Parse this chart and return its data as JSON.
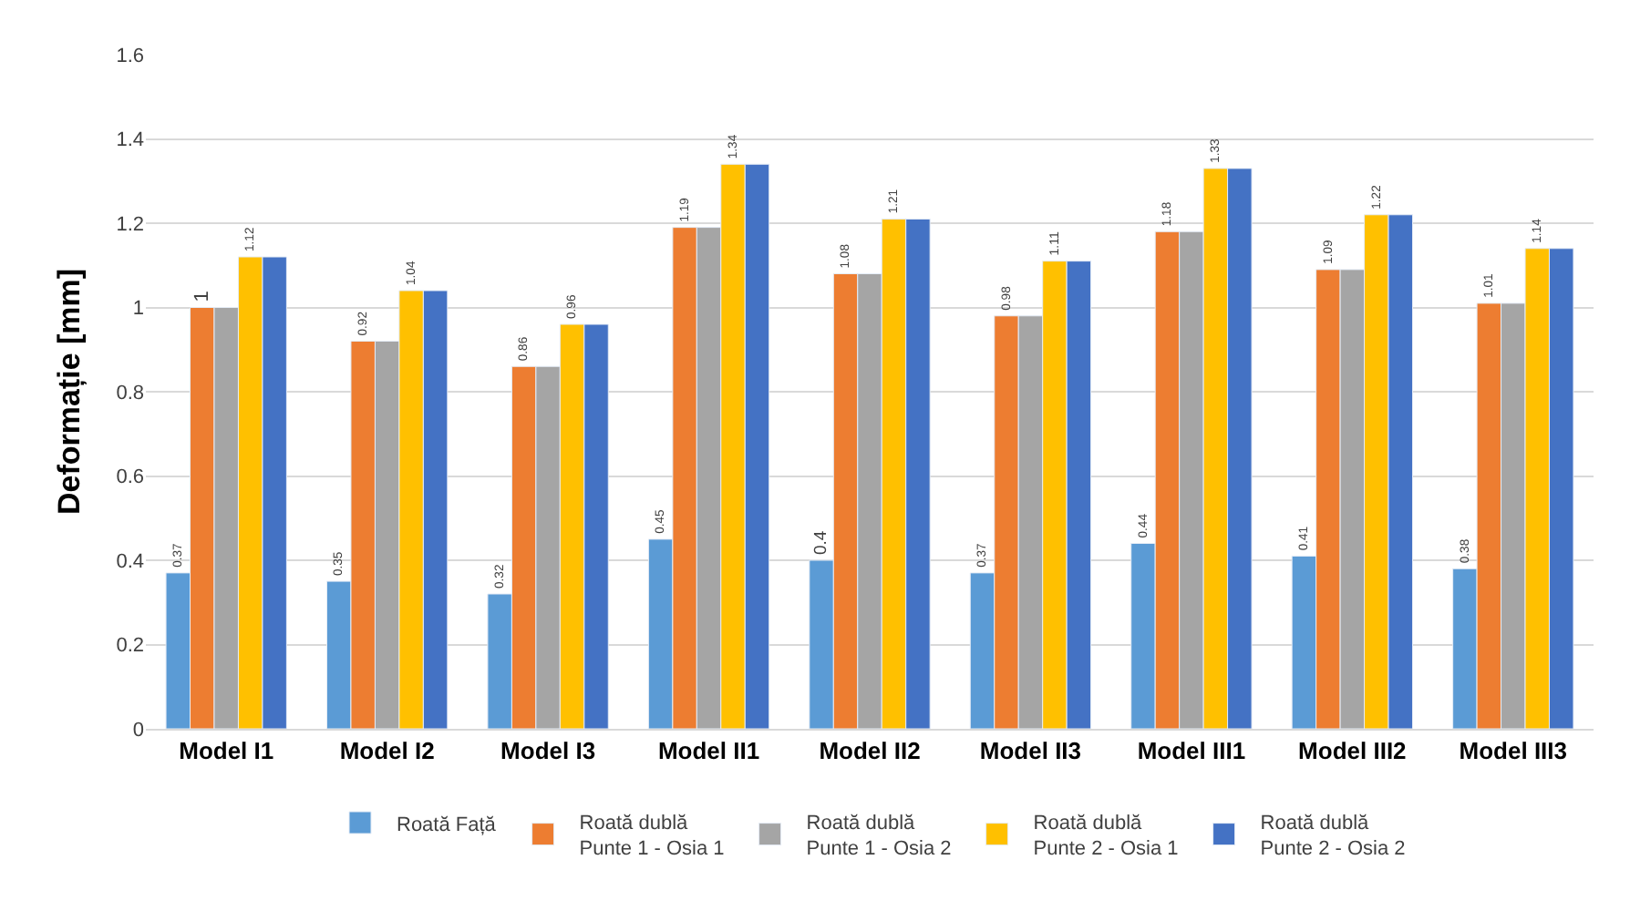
{
  "chart_data": {
    "type": "bar",
    "ylabel": "Deformație [mm]",
    "categories": [
      "Model I1",
      "Model I2",
      "Model I3",
      "Model II1",
      "Model II2",
      "Model II3",
      "Model III1",
      "Model III2",
      "Model III3"
    ],
    "series": [
      {
        "name": "Roată Față",
        "color": "#5b9bd5",
        "values": [
          0.37,
          0.35,
          0.32,
          0.45,
          0.4,
          0.37,
          0.44,
          0.41,
          0.38
        ],
        "value_labels": [
          "0.37",
          "0.35",
          "0.32",
          "0.45",
          "0.4",
          "0.37",
          "0.44",
          "0.41",
          "0.38"
        ]
      },
      {
        "name": "Roată dublă\nPunte 1 - Osia 1",
        "color": "#ed7d31",
        "values": [
          1,
          0.92,
          0.86,
          1.19,
          1.08,
          0.98,
          1.18,
          1.09,
          1.01
        ],
        "value_labels": [
          "1",
          "0.92",
          "0.86",
          "1.19",
          "1.08",
          "0.98",
          "1.18",
          "1.09",
          "1.01"
        ]
      },
      {
        "name": "Roată dublă\nPunte 1 - Osia 2",
        "color": "#a5a5a5",
        "values": [
          1,
          0.92,
          0.86,
          1.19,
          1.08,
          0.98,
          1.18,
          1.09,
          1.01
        ]
      },
      {
        "name": "Roată dublă\nPunte 2 - Osia 1",
        "color": "#ffc000",
        "values": [
          1.12,
          1.04,
          0.96,
          1.34,
          1.21,
          1.11,
          1.33,
          1.22,
          1.14
        ],
        "value_labels": [
          "1.12",
          "1.04",
          "0.96",
          "1.34",
          "1.21",
          "1.11",
          "1.33",
          "1.22",
          "1.14"
        ]
      },
      {
        "name": "Roată dublă\nPunte 2 - Osia 2",
        "color": "#4472c4",
        "values": [
          1.12,
          1.04,
          0.96,
          1.34,
          1.21,
          1.11,
          1.33,
          1.22,
          1.14
        ]
      }
    ],
    "ylim": [
      0,
      1.6
    ],
    "yticks": [
      0,
      0.2,
      0.4,
      0.6,
      0.8,
      1,
      1.2,
      1.4,
      1.6
    ],
    "grid": "y",
    "legend": "bottom"
  }
}
